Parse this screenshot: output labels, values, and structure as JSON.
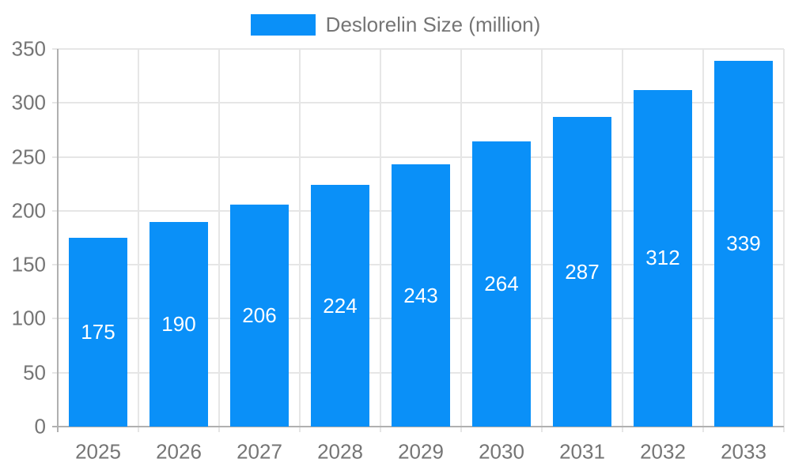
{
  "chart_data": {
    "type": "bar",
    "legend": {
      "label": "Deslorelin Size (million)",
      "position": "top-center"
    },
    "categories": [
      "2025",
      "2026",
      "2027",
      "2028",
      "2029",
      "2030",
      "2031",
      "2032",
      "2033"
    ],
    "series": [
      {
        "name": "Deslorelin Size (million)",
        "values": [
          175,
          190,
          206,
          224,
          243,
          264,
          287,
          312,
          339
        ]
      }
    ],
    "values": [
      175,
      190,
      206,
      224,
      243,
      264,
      287,
      312,
      339
    ],
    "value_labels_shown": true,
    "xlabel": "",
    "ylabel": "",
    "ylim": [
      0,
      350
    ],
    "y_ticks": [
      0,
      50,
      100,
      150,
      200,
      250,
      300,
      350
    ],
    "grid": true,
    "colors": {
      "bar": "#0a90f8",
      "axis_text": "#757575",
      "value_label": "#ffffff",
      "gridline": "#e6e6e6",
      "axis_line": "#b0b0b0"
    }
  }
}
